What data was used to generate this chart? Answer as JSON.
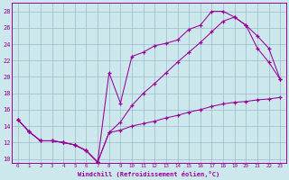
{
  "xlabel": "Windchill (Refroidissement éolien,°C)",
  "bg_color": "#cce8ec",
  "line_color": "#990099",
  "grid_color": "#99bbcc",
  "xlim": [
    -0.5,
    23.5
  ],
  "ylim": [
    9.5,
    29.0
  ],
  "yticks": [
    10,
    12,
    14,
    16,
    18,
    20,
    22,
    24,
    26,
    28
  ],
  "xticks": [
    0,
    1,
    2,
    3,
    4,
    5,
    6,
    7,
    8,
    9,
    10,
    11,
    12,
    13,
    14,
    15,
    16,
    17,
    18,
    19,
    20,
    21,
    22,
    23
  ],
  "line1_x": [
    0,
    1,
    2,
    3,
    4,
    5,
    6,
    7,
    8,
    9,
    10,
    11,
    12,
    13,
    14,
    15,
    16,
    17,
    18,
    19,
    20,
    21,
    22,
    23
  ],
  "line1_y": [
    14.8,
    13.3,
    12.2,
    12.2,
    12.0,
    11.7,
    11.0,
    9.6,
    20.5,
    16.8,
    22.5,
    23.0,
    23.8,
    24.1,
    24.5,
    25.8,
    26.3,
    28.0,
    28.0,
    27.3,
    26.3,
    25.0,
    23.5,
    19.7
  ],
  "line2_x": [
    0,
    1,
    2,
    3,
    4,
    5,
    6,
    7,
    8,
    9,
    10,
    11,
    12,
    13,
    14,
    15,
    16,
    17,
    18,
    19,
    20,
    21,
    22,
    23
  ],
  "line2_y": [
    14.8,
    13.3,
    12.2,
    12.2,
    12.0,
    11.7,
    11.0,
    9.6,
    13.2,
    14.5,
    16.5,
    18.0,
    19.2,
    20.5,
    21.8,
    23.0,
    24.2,
    25.5,
    26.8,
    27.3,
    26.3,
    23.5,
    21.8,
    19.7
  ],
  "line3_x": [
    0,
    1,
    2,
    3,
    4,
    5,
    6,
    7,
    8,
    9,
    10,
    11,
    12,
    13,
    14,
    15,
    16,
    17,
    18,
    19,
    20,
    21,
    22,
    23
  ],
  "line3_y": [
    14.8,
    13.3,
    12.2,
    12.2,
    12.0,
    11.7,
    11.0,
    9.6,
    13.2,
    13.5,
    14.0,
    14.3,
    14.6,
    15.0,
    15.3,
    15.7,
    16.0,
    16.4,
    16.7,
    16.9,
    17.0,
    17.2,
    17.3,
    17.5
  ]
}
